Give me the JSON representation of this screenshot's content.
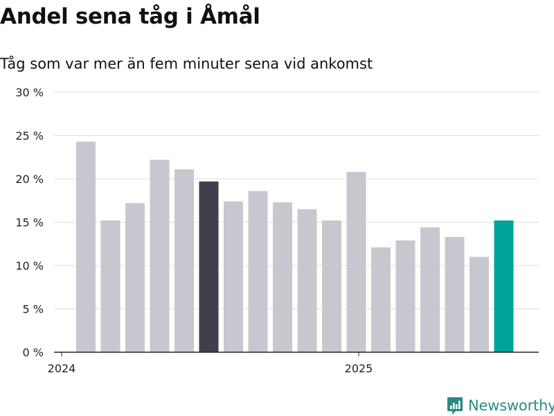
{
  "title": "Andel sena tåg i Åmål",
  "subtitle": "Tåg som var mer än fem minuter sena vid ankomst",
  "brand": {
    "name": "Newsworthy",
    "color": "#2b8a87",
    "icon": "newsworthy-logo-icon"
  },
  "colors": {
    "bar_default": "#c8c7d0",
    "bar_highlight": "#403f4c",
    "bar_latest": "#00a39a",
    "grid": "#dddddd",
    "axis": "#222222"
  },
  "chart_data": {
    "type": "bar",
    "title": "Andel sena tåg i Åmål",
    "subtitle": "Tåg som var mer än fem minuter sena vid ankomst",
    "xlabel": "",
    "ylabel": "",
    "categories": [
      "2024-01",
      "2024-02",
      "2024-03",
      "2024-04",
      "2024-05",
      "2024-06",
      "2024-07",
      "2024-08",
      "2024-09",
      "2024-10",
      "2024-11",
      "2024-12",
      "2025-01",
      "2025-02",
      "2025-03",
      "2025-04",
      "2025-05",
      "2025-06"
    ],
    "values": [
      24.3,
      15.2,
      17.2,
      22.2,
      21.1,
      19.7,
      17.4,
      18.6,
      17.3,
      16.5,
      15.2,
      20.8,
      12.1,
      12.9,
      14.4,
      13.3,
      11.0,
      15.2
    ],
    "highlight": {
      "2024-06": "bar_highlight",
      "2025-06": "bar_latest"
    },
    "ylim": [
      0,
      30
    ],
    "yticks": [
      0,
      5,
      10,
      15,
      20,
      25,
      30
    ],
    "ytick_labels": [
      "0 %",
      "5 %",
      "10 %",
      "15 %",
      "20 %",
      "25 %",
      "30 %"
    ],
    "xticks": [
      "2024",
      "2025"
    ],
    "grid": true,
    "legend": "none"
  }
}
